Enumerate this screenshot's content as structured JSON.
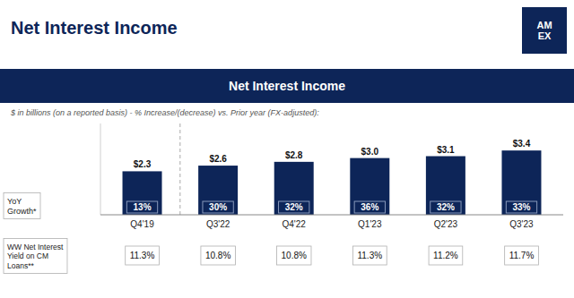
{
  "chart_data": {
    "type": "bar",
    "title": "Net Interest Income",
    "subtitle": "Net Interest Income",
    "annotations": [
      "$ in billions (on a reported basis) - % Increase/(decrease) vs. Prior year (FX-adjusted):",
      "AM\nEX"
    ],
    "categories": [
      "Q4'19",
      "Q3'22",
      "Q4'22",
      "Q1'23",
      "Q2'23",
      "Q3'23"
    ],
    "values": [
      2.3,
      2.6,
      2.8,
      3.0,
      3.1,
      3.4
    ],
    "value_labels": [
      "$2.3",
      "$2.6",
      "$2.8",
      "$3.0",
      "$3.1",
      "$3.4"
    ],
    "color": "#0d2558",
    "ylim": [
      0,
      4.828
    ],
    "yticks": [],
    "tick_labels": "x",
    "grid": false,
    "data_labels": true,
    "rows": [
      {
        "label": "YoY\nGrowth*",
        "values": [
          13,
          30,
          32,
          36,
          32,
          33
        ],
        "value_labels": [
          "13%",
          "30%",
          "32%",
          "36%",
          "32%",
          "33%"
        ]
      },
      {
        "label": "WW Net Interest\nYield on CM\nLoans**",
        "values": [
          11.3,
          10.8,
          10.8,
          11.3,
          11.2,
          11.7
        ],
        "value_labels": [
          "11.3%",
          "10.8%",
          "10.8%",
          "11.3%",
          "11.2%",
          "11.7%"
        ]
      }
    ]
  }
}
